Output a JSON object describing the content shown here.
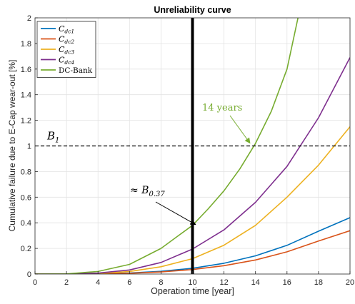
{
  "chart_data": {
    "type": "line",
    "title": "Unreliability curve",
    "xlabel": "Operation time [year]",
    "ylabel": "Cumulative failure due to E-Cap wear-out [%]",
    "xlim": [
      0,
      20
    ],
    "ylim": [
      0,
      2
    ],
    "xticks": [
      "0",
      "2",
      "4",
      "6",
      "8",
      "10",
      "12",
      "14",
      "16",
      "18",
      "20"
    ],
    "yticks": [
      "0",
      "0.2",
      "0.4",
      "0.6",
      "0.8",
      "1",
      "1.2",
      "1.4",
      "1.6",
      "1.8",
      "2"
    ],
    "grid": true,
    "legend_position": "top-left",
    "series": [
      {
        "name": "C_dc1",
        "sub": "dc1",
        "color": "#0072BD",
        "x": [
          0,
          2,
          4,
          6,
          8,
          10,
          12,
          14,
          16,
          18,
          20
        ],
        "y": [
          0,
          0.0001,
          0.002,
          0.008,
          0.021,
          0.045,
          0.084,
          0.142,
          0.224,
          0.334,
          0.44
        ]
      },
      {
        "name": "C_dc2",
        "sub": "dc2",
        "color": "#D95319",
        "x": [
          0,
          2,
          4,
          6,
          8,
          10,
          12,
          14,
          16,
          18,
          20
        ],
        "y": [
          0,
          0.0001,
          0.0015,
          0.006,
          0.016,
          0.035,
          0.065,
          0.11,
          0.173,
          0.258,
          0.338
        ]
      },
      {
        "name": "C_dc3",
        "sub": "dc3",
        "color": "#EDB120",
        "x": [
          0,
          2,
          4,
          6,
          8,
          10,
          12,
          14,
          16,
          18,
          20
        ],
        "y": [
          0,
          0.0002,
          0.004,
          0.02,
          0.057,
          0.12,
          0.225,
          0.38,
          0.6,
          0.85,
          1.15
        ]
      },
      {
        "name": "C_dc4",
        "sub": "dc4",
        "color": "#7E2F8E",
        "x": [
          0,
          2,
          4,
          6,
          8,
          10,
          12,
          14,
          16,
          18,
          20
        ],
        "y": [
          0,
          0.0004,
          0.007,
          0.032,
          0.09,
          0.195,
          0.345,
          0.56,
          0.84,
          1.22,
          1.69
        ]
      },
      {
        "name": "DC-Bank",
        "sub": "",
        "color": "#77AC30",
        "x": [
          0,
          2,
          4,
          6,
          8,
          9,
          10,
          11,
          12,
          13,
          14,
          15,
          16,
          16.7
        ],
        "y": [
          0,
          0.001,
          0.02,
          0.075,
          0.2,
          0.29,
          0.38,
          0.51,
          0.65,
          0.82,
          1.02,
          1.27,
          1.6,
          2.0
        ]
      }
    ],
    "reference_line": {
      "y": 1,
      "label": "B",
      "label_sub": "1"
    },
    "vertical_line": {
      "x": 10
    },
    "annotations": [
      {
        "text": "14 years",
        "color": "#77AC30",
        "target": [
          13.6,
          1.0
        ]
      },
      {
        "text": "≈ B",
        "sub": "0.37",
        "color": "#000000",
        "target": [
          10.1,
          0.37
        ]
      }
    ]
  }
}
